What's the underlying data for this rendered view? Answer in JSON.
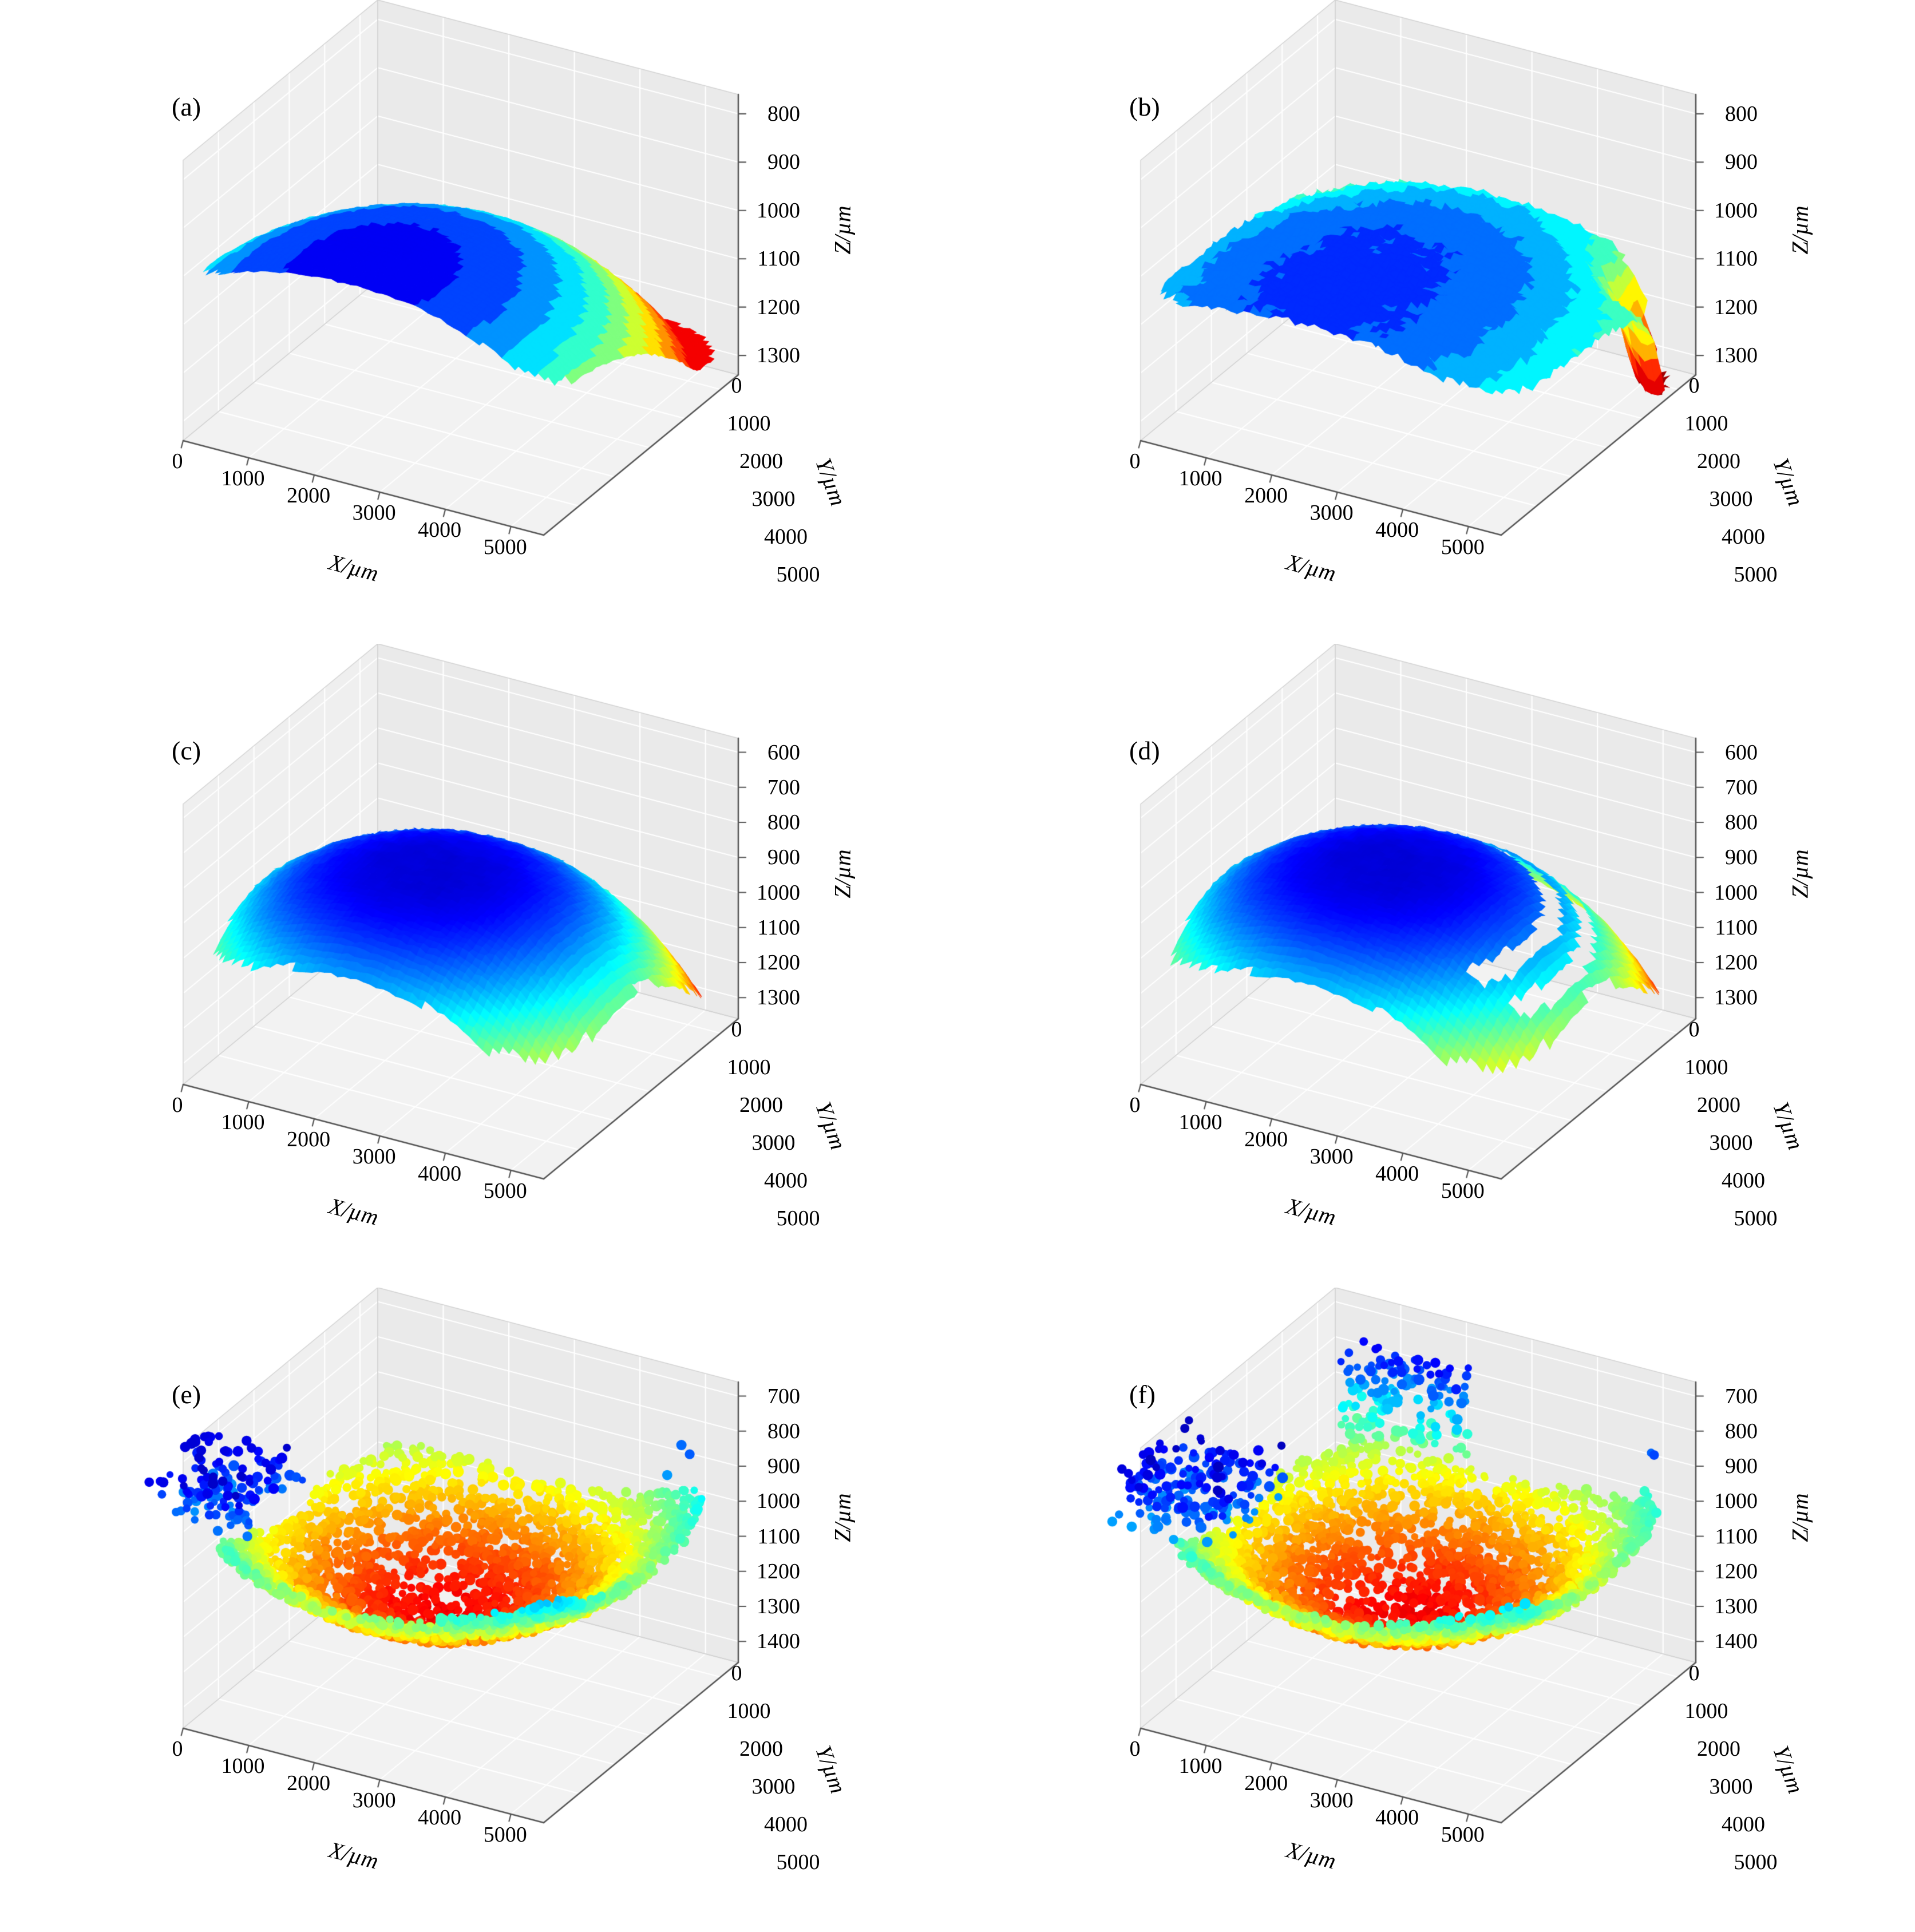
{
  "figure": {
    "background": "#ffffff",
    "text_color": "#000000",
    "pane_bottom": "#f2f2f2",
    "pane_left": "#efefef",
    "pane_right": "#eaeaea",
    "grid_color": "#ffffff",
    "box_edge_color": "#d2d2d2",
    "spine_color": "#555555",
    "grid_layout": "2x3"
  },
  "chart_data": [
    {
      "panel_label": "(a)",
      "type": "surface3d",
      "plot_style": "surface",
      "xlabel": "X/µm",
      "ylabel": "Y/µm",
      "zlabel": "Z/µm",
      "x_ticks": [
        0,
        1000,
        2000,
        3000,
        4000,
        5000
      ],
      "y_ticks": [
        0,
        1000,
        2000,
        3000,
        4000,
        5000
      ],
      "z_ticks": [
        800,
        900,
        1000,
        1100,
        1200,
        1300
      ],
      "x_range_um": [
        0,
        5500
      ],
      "y_range_um": [
        0,
        5500
      ],
      "z_axis_range": [
        760,
        1340
      ],
      "z_axis_inverted": true,
      "colormap": "jet",
      "color_bands": 13,
      "color_range": [
        870,
        1300
      ],
      "jitter": 5,
      "seed": 11,
      "domain": {
        "p": 5,
        "half": 0.52,
        "edge_noise": 0.035,
        "noise_scale": 8
      },
      "model": {
        "type": "bowl",
        "cx": 0.46,
        "cy": 0.12,
        "sx": 1.35,
        "sy": 1.02,
        "z_base": 925,
        "amp": 340,
        "exp": 1.3,
        "clamp": [
          880,
          1265
        ],
        "spikes": []
      },
      "summary": "Smooth shallow concave surface; minimum Z ≈ 925 µm (dark blue basin), rising to ≈ 1265 µm (red rim) along the far edge; contour-band shading."
    },
    {
      "panel_label": "(b)",
      "type": "surface3d",
      "plot_style": "surface",
      "xlabel": "X/µm",
      "ylabel": "Y/µm",
      "zlabel": "Z/µm",
      "x_ticks": [
        0,
        1000,
        2000,
        3000,
        4000,
        5000
      ],
      "y_ticks": [
        0,
        1000,
        2000,
        3000,
        4000,
        5000
      ],
      "z_ticks": [
        800,
        900,
        1000,
        1100,
        1200,
        1300
      ],
      "x_range_um": [
        0,
        5500
      ],
      "y_range_um": [
        0,
        5500
      ],
      "z_axis_range": [
        760,
        1340
      ],
      "z_axis_inverted": true,
      "colormap": "jet",
      "color_bands": 15,
      "color_range": [
        930,
        1345
      ],
      "jitter": 16,
      "seed": 22,
      "domain": {
        "p": 5,
        "half": 0.52,
        "edge_noise": 0.04,
        "noise_scale": 9
      },
      "model": {
        "type": "bowl",
        "cx": 0.45,
        "cy": 0.25,
        "sx": 1.3,
        "sy": 0.9,
        "z_base": 1005,
        "amp": 190,
        "exp": 1.2,
        "clamp": [
          960,
          1330
        ],
        "spikes": [
          {
            "u": 0.96,
            "v": 0.9,
            "r": 0.1,
            "amp": 300
          }
        ]
      },
      "summary": "Terraced shallow basin, mostly cyan-green; minimum Z ≈ 1005 µm (blue centre), edges ≈ 1150–1190 µm; red spike dropping to ≈ 1330 µm at the right corner."
    },
    {
      "panel_label": "(c)",
      "type": "surface3d",
      "plot_style": "surface",
      "xlabel": "X/µm",
      "ylabel": "Y/µm",
      "zlabel": "Z/µm",
      "x_ticks": [
        0,
        1000,
        2000,
        3000,
        4000,
        5000
      ],
      "y_ticks": [
        0,
        1000,
        2000,
        3000,
        4000,
        5000
      ],
      "z_ticks": [
        600,
        700,
        800,
        900,
        1000,
        1100,
        1200,
        1300
      ],
      "x_range_um": [
        0,
        5500
      ],
      "y_range_um": [
        0,
        5500
      ],
      "z_axis_range": [
        560,
        1360
      ],
      "z_axis_inverted": true,
      "colormap": "jet",
      "color_bands": 64,
      "color_range": [
        770,
        1345
      ],
      "jitter": 10,
      "seed": 33,
      "domain": {
        "p": 3.5,
        "half": 0.52,
        "edge_noise": 0.05,
        "noise_scale": 9
      },
      "model": {
        "type": "bowl",
        "cx": 0.46,
        "cy": 0.42,
        "sx": 1.45,
        "sy": 1.45,
        "z_base": 820,
        "amp": 450,
        "exp": 1.4,
        "clamp": [
          800,
          1350
        ],
        "spikes": []
      },
      "summary": "Strongly curved dome (inverted Z): minimum Z ≈ 820 µm at the centre (dark blue cap) increasing smoothly to ≈ 1350 µm (red drooping edges and corner tongues)."
    },
    {
      "panel_label": "(d)",
      "type": "surface3d",
      "plot_style": "surface",
      "xlabel": "X/µm",
      "ylabel": "Y/µm",
      "zlabel": "Z/µm",
      "x_ticks": [
        0,
        1000,
        2000,
        3000,
        4000,
        5000
      ],
      "y_ticks": [
        0,
        1000,
        2000,
        3000,
        4000,
        5000
      ],
      "z_ticks": [
        600,
        700,
        800,
        900,
        1000,
        1100,
        1200,
        1300
      ],
      "x_range_um": [
        0,
        5500
      ],
      "y_range_um": [
        0,
        5500
      ],
      "z_axis_range": [
        560,
        1360
      ],
      "z_axis_inverted": true,
      "colormap": "jet",
      "color_bands": 64,
      "color_range": [
        770,
        1345
      ],
      "jitter": 10,
      "seed": 44,
      "domain": {
        "p": 3.5,
        "half": 0.52,
        "edge_noise": 0.055,
        "noise_scale": 9
      },
      "model": {
        "type": "bowl",
        "cx": 0.45,
        "cy": 0.44,
        "sx": 1.45,
        "sy": 1.45,
        "z_base": 820,
        "amp": 450,
        "exp": 1.4,
        "clamp": [
          800,
          1350
        ],
        "gaps": [
          {
            "cx": 0.46,
            "cy": 0.42,
            "r": 0.4,
            "w": 0.014,
            "min_uv": 1.02
          },
          {
            "cx": 0.46,
            "cy": 0.42,
            "r": 0.485,
            "w": 0.009,
            "min_uv": 1.15
          }
        ],
        "spikes": []
      },
      "summary": "Same dome as (c) with narrow white data gaps (missing arcs) near the right corner; Z from ≈ 820 µm (centre) to ≈ 1350 µm (edges)."
    },
    {
      "panel_label": "(e)",
      "type": "surface3d",
      "plot_style": "scatter",
      "xlabel": "X/µm",
      "ylabel": "Y/µm",
      "zlabel": "Z/µm",
      "x_ticks": [
        0,
        1000,
        2000,
        3000,
        4000,
        5000
      ],
      "y_ticks": [
        0,
        1000,
        2000,
        3000,
        4000,
        5000
      ],
      "z_ticks": [
        700,
        800,
        900,
        1000,
        1100,
        1200,
        1300,
        1400
      ],
      "x_range_um": [
        0,
        5500
      ],
      "y_range_um": [
        0,
        5500
      ],
      "z_axis_range": [
        660,
        1460
      ],
      "z_axis_inverted": true,
      "colormap": "jet",
      "color_bands": 64,
      "color_range": [
        690,
        1340
      ],
      "seed": 77,
      "n_points": 4200,
      "dot_radius": 7.5,
      "domain": {
        "p": 4,
        "half": 0.5,
        "edge_noise": 0.06,
        "noise_scale": 7
      },
      "model": {
        "type": "dome",
        "cx": 0.43,
        "cy": 0.55,
        "sx": 1.35,
        "sy": 1.35,
        "z_max": 1265,
        "amp": 430,
        "exp": 0.9,
        "clamp": [
          730,
          1310
        ],
        "jitter": 30,
        "spikes": []
      },
      "holes": {
        "scale": 4.6,
        "strength": 0.85,
        "bias": 0.38,
        "rim_start": 0.78,
        "rim_extra": 1.4
      },
      "cluster": {
        "cx": 0.03,
        "cy": 0.08,
        "su": 0.28,
        "sv": 0.33,
        "n": 150,
        "z_lo": 735,
        "z_hi": 870
      },
      "trail": null,
      "outliers": [
        [
          0.93,
          0.88,
          830
        ],
        [
          0.88,
          0.93,
          840
        ],
        [
          0.9,
          0.82,
          870
        ]
      ],
      "summary": "Sparse measured point cloud forming a crater (inverted Z): maximum Z ≈ 1265 µm at the centre (dark red), falling to ≈ 850 µm at the rim (cyan); dark-blue outlier cluster (Z ≈ 735–870 µm) trailing off the near-left corner; many voids in the data."
    },
    {
      "panel_label": "(f)",
      "type": "surface3d",
      "plot_style": "scatter",
      "xlabel": "X/µm",
      "ylabel": "Y/µm",
      "zlabel": "Z/µm",
      "x_ticks": [
        0,
        1000,
        2000,
        3000,
        4000,
        5000
      ],
      "y_ticks": [
        0,
        1000,
        2000,
        3000,
        4000,
        5000
      ],
      "z_ticks": [
        700,
        800,
        900,
        1000,
        1100,
        1200,
        1300,
        1400
      ],
      "x_range_um": [
        0,
        5500
      ],
      "y_range_um": [
        0,
        5500
      ],
      "z_axis_range": [
        660,
        1460
      ],
      "z_axis_inverted": true,
      "colormap": "jet",
      "color_bands": 64,
      "color_range": [
        690,
        1340
      ],
      "seed": 99,
      "n_points": 4200,
      "dot_radius": 7.5,
      "domain": {
        "p": 4,
        "half": 0.5,
        "edge_noise": 0.06,
        "noise_scale": 7
      },
      "model": {
        "type": "dome",
        "cx": 0.45,
        "cy": 0.54,
        "sx": 1.35,
        "sy": 1.35,
        "z_max": 1265,
        "amp": 430,
        "exp": 0.9,
        "clamp": [
          730,
          1310
        ],
        "jitter": 30,
        "spikes": []
      },
      "holes": {
        "scale": 4.8,
        "strength": 0.9,
        "bias": 0.4,
        "rim_start": 0.78,
        "rim_extra": 1.4
      },
      "cluster": {
        "cx": 0.05,
        "cy": 0.1,
        "su": 0.3,
        "sv": 0.36,
        "n": 190,
        "z_lo": 730,
        "z_hi": 880
      },
      "trail": {
        "u0": 0.06,
        "u1": 0.4,
        "v0": 0.88,
        "v1": 1.0,
        "n": 150,
        "z_lo": 765,
        "z_hi": 1020
      },
      "outliers": [
        [
          0.96,
          0.86,
          815
        ],
        [
          0.93,
          0.9,
          835
        ]
      ],
      "summary": "Point cloud similar to (e): crater with centre Z ≈ 1265 µm (red) and rim ≈ 850 µm (cyan); blue outlier cluster at the near-left corner and a blue-cyan trail of points along the far edge."
    }
  ]
}
